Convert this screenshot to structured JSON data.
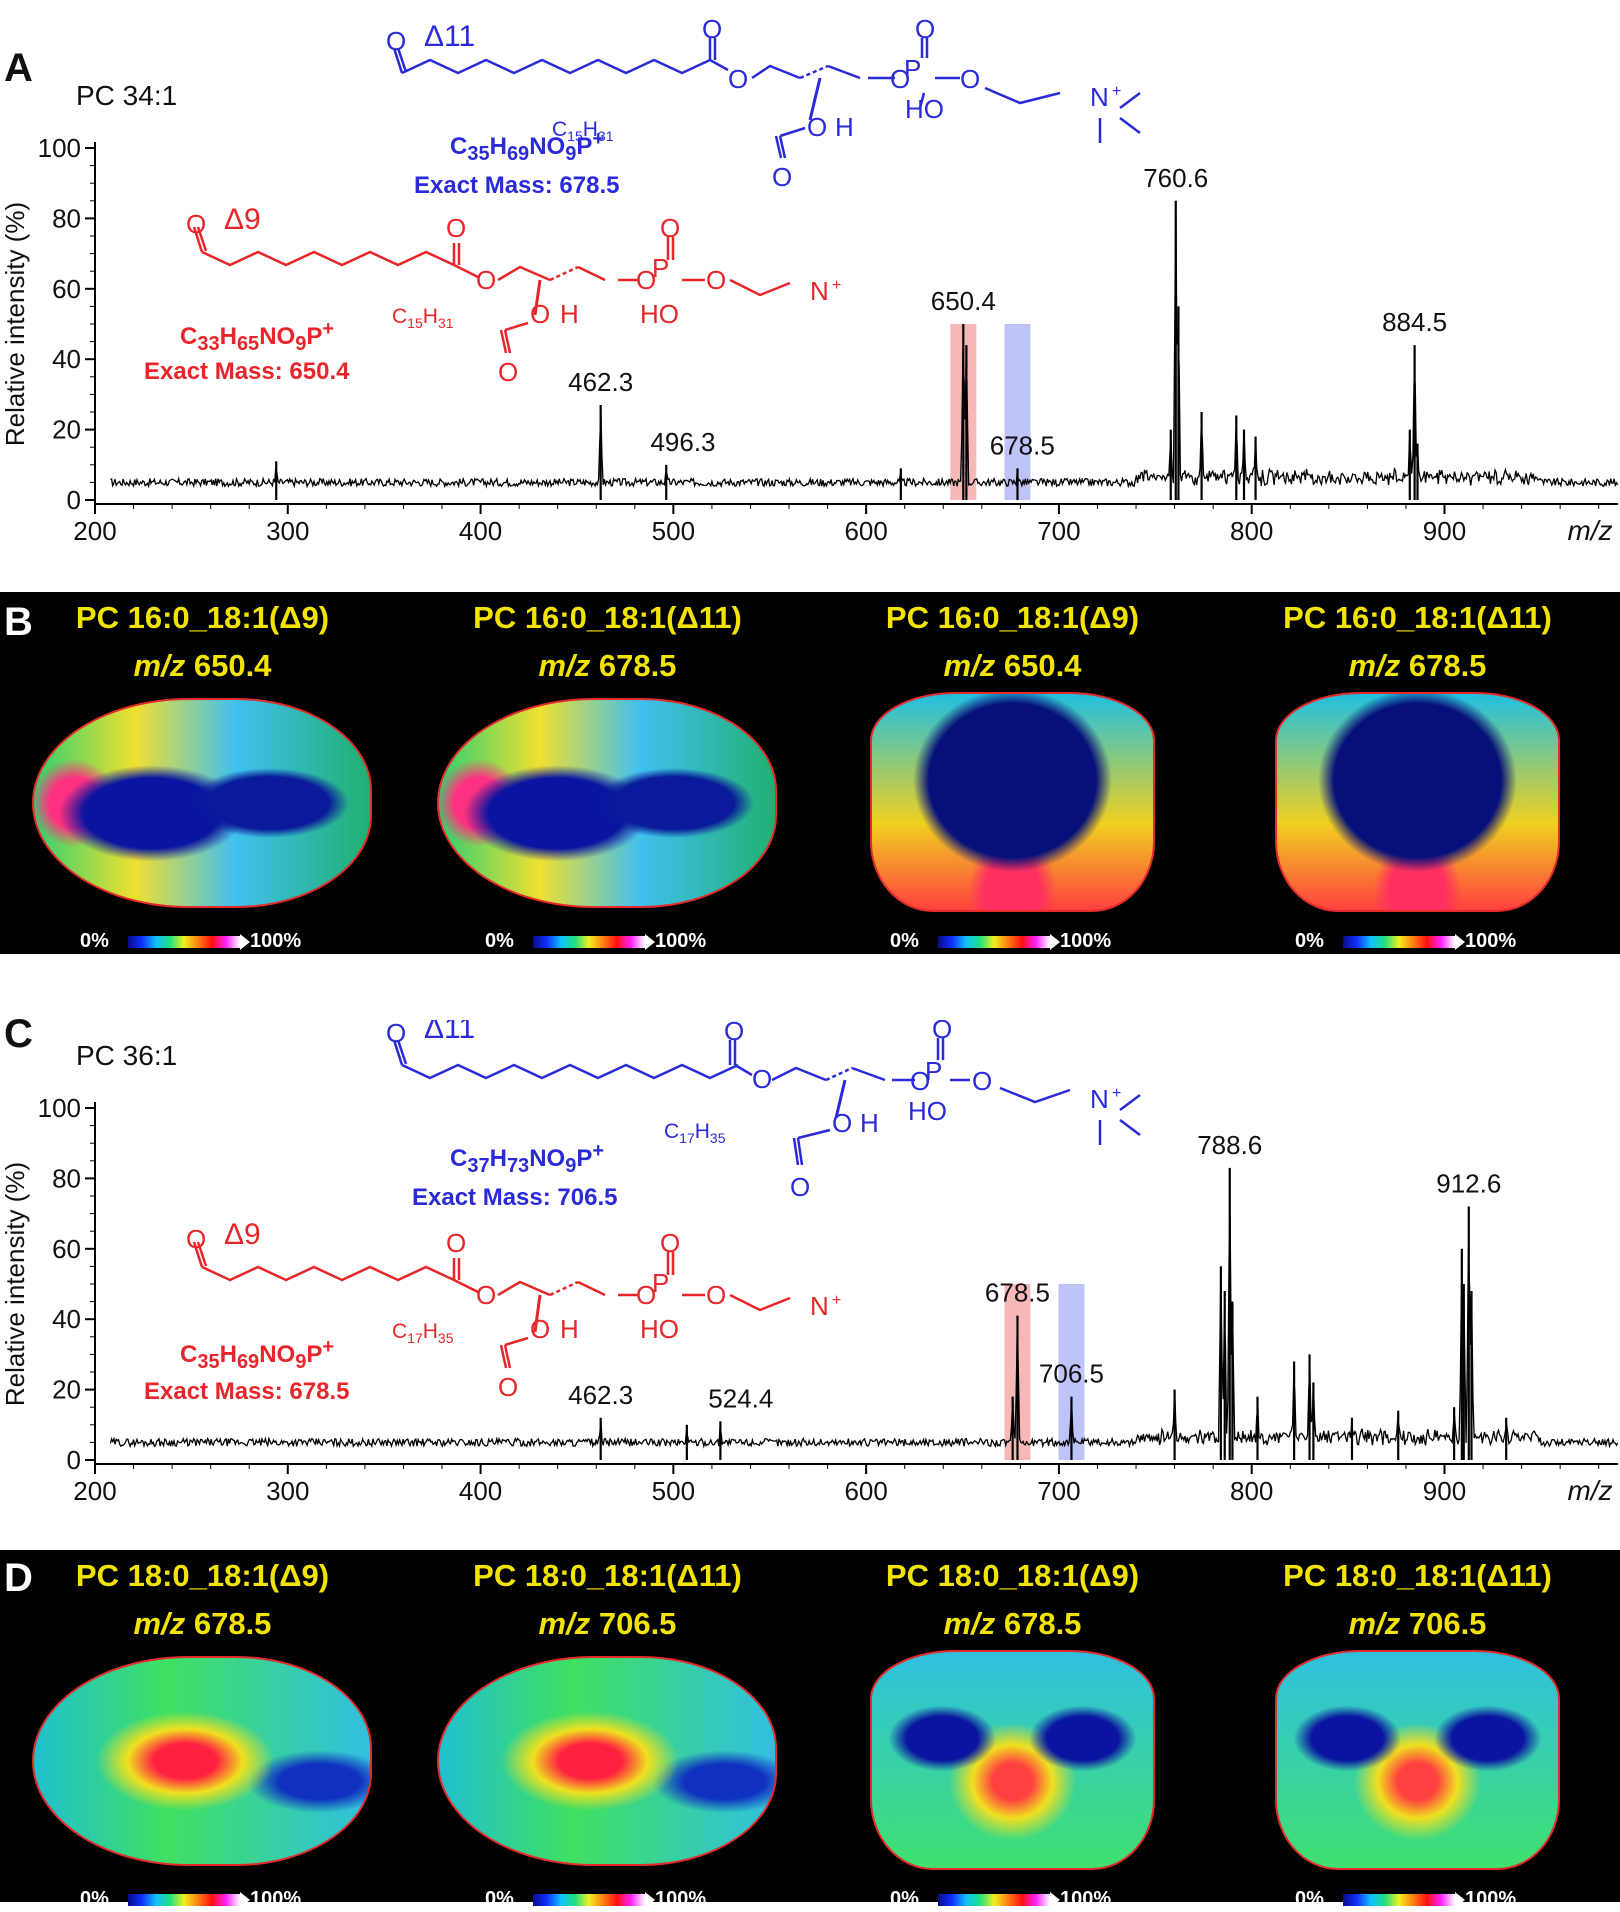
{
  "panels": {
    "A": "A",
    "B": "B",
    "C": "C",
    "D": "D"
  },
  "spectrumA": {
    "title": "PC 34:1",
    "delta_blue": "Δ11",
    "delta_red": "Δ9",
    "formula_blue_html": "C<sub>35</sub>H<sub>69</sub>NO<sub>9</sub>P<sup>+</sup>",
    "mass_blue": "Exact Mass: 678.5",
    "formula_red_html": "C<sub>33</sub>H<sub>65</sub>NO<sub>9</sub>P<sup>+</sup>",
    "mass_red": "Exact Mass: 650.4",
    "acyl": "C15H31"
  },
  "spectrumC": {
    "title": "PC 36:1",
    "delta_blue": "Δ11",
    "delta_red": "Δ9",
    "formula_blue_html": "C<sub>37</sub>H<sub>73</sub>NO<sub>9</sub>P<sup>+</sup>",
    "mass_blue": "Exact Mass: 706.5",
    "formula_red_html": "C<sub>35</sub>H<sub>69</sub>NO<sub>9</sub>P<sup>+</sup>",
    "mass_red": "Exact Mass: 678.5",
    "acyl": "C17H35"
  },
  "chart_data": [
    {
      "type": "line",
      "title": "PC 34:1",
      "xlabel": "m/z",
      "ylabel": "Relative intensity (%)",
      "xlim": [
        200,
        990
      ],
      "ylim": [
        0,
        100
      ],
      "xticks": [
        200,
        300,
        400,
        500,
        600,
        700,
        800,
        900
      ],
      "yticks": [
        0,
        20,
        40,
        60,
        80,
        100
      ],
      "baseline": 5,
      "peaks": [
        {
          "mz": 294,
          "y": 11
        },
        {
          "mz": 462.3,
          "y": 27,
          "label": "462.3"
        },
        {
          "mz": 496.3,
          "y": 10,
          "label": "496.3",
          "label_mz": 505
        },
        {
          "mz": 618,
          "y": 9
        },
        {
          "mz": 650.4,
          "y": 50,
          "label": "650.4"
        },
        {
          "mz": 652,
          "y": 44
        },
        {
          "mz": 678.5,
          "y": 9,
          "label": "678.5",
          "label_mz": 681
        },
        {
          "mz": 760.6,
          "y": 85,
          "label": "760.6"
        },
        {
          "mz": 762,
          "y": 55
        },
        {
          "mz": 758,
          "y": 20
        },
        {
          "mz": 774,
          "y": 25
        },
        {
          "mz": 792,
          "y": 24
        },
        {
          "mz": 796,
          "y": 20
        },
        {
          "mz": 802,
          "y": 18
        },
        {
          "mz": 884.5,
          "y": 44,
          "label": "884.5"
        },
        {
          "mz": 882,
          "y": 20
        },
        {
          "mz": 886,
          "y": 16
        }
      ],
      "highlights": [
        {
          "mz": 650.4,
          "color": "#f4a0a0"
        },
        {
          "mz": 678.5,
          "color": "#a8b0f4"
        }
      ]
    },
    {
      "type": "line",
      "title": "PC 36:1",
      "xlabel": "m/z",
      "ylabel": "Relative intensity (%)",
      "xlim": [
        200,
        990
      ],
      "ylim": [
        0,
        100
      ],
      "xticks": [
        200,
        300,
        400,
        500,
        600,
        700,
        800,
        900
      ],
      "yticks": [
        0,
        20,
        40,
        60,
        80,
        100
      ],
      "baseline": 5,
      "peaks": [
        {
          "mz": 462.3,
          "y": 12,
          "label": "462.3"
        },
        {
          "mz": 507,
          "y": 10
        },
        {
          "mz": 524.4,
          "y": 11,
          "label": "524.4",
          "label_mz": 535
        },
        {
          "mz": 678.5,
          "y": 41,
          "label": "678.5"
        },
        {
          "mz": 676,
          "y": 18
        },
        {
          "mz": 706.5,
          "y": 18,
          "label": "706.5"
        },
        {
          "mz": 760,
          "y": 20
        },
        {
          "mz": 784,
          "y": 55
        },
        {
          "mz": 786,
          "y": 48
        },
        {
          "mz": 788.6,
          "y": 83,
          "label": "788.6"
        },
        {
          "mz": 790,
          "y": 45
        },
        {
          "mz": 803,
          "y": 18
        },
        {
          "mz": 822,
          "y": 28
        },
        {
          "mz": 830,
          "y": 30
        },
        {
          "mz": 832,
          "y": 22
        },
        {
          "mz": 852,
          "y": 12
        },
        {
          "mz": 876,
          "y": 14
        },
        {
          "mz": 905,
          "y": 15
        },
        {
          "mz": 909,
          "y": 60
        },
        {
          "mz": 910,
          "y": 50
        },
        {
          "mz": 912.6,
          "y": 72,
          "label": "912.6"
        },
        {
          "mz": 914,
          "y": 48
        },
        {
          "mz": 932,
          "y": 12
        }
      ],
      "highlights": [
        {
          "mz": 678.5,
          "color": "#f4a0a0"
        },
        {
          "mz": 706.5,
          "color": "#a8b0f4"
        }
      ]
    }
  ],
  "imagingB": [
    {
      "name": "PC 16:0_18:1(Δ9)",
      "mz_label": "m/z",
      "mz": "650.4",
      "view": "sagittal"
    },
    {
      "name": "PC 16:0_18:1(Δ11)",
      "mz_label": "m/z",
      "mz": "678.5",
      "view": "sagittal"
    },
    {
      "name": "PC 16:0_18:1(Δ9)",
      "mz_label": "m/z",
      "mz": "650.4",
      "view": "coronal"
    },
    {
      "name": "PC 16:0_18:1(Δ11)",
      "mz_label": "m/z",
      "mz": "678.5",
      "view": "coronal"
    }
  ],
  "imagingD": [
    {
      "name": "PC 18:0_18:1(Δ9)",
      "mz_label": "m/z",
      "mz": "678.5",
      "view": "sagittal"
    },
    {
      "name": "PC 18:0_18:1(Δ11)",
      "mz_label": "m/z",
      "mz": "706.5",
      "view": "sagittal"
    },
    {
      "name": "PC 18:0_18:1(Δ9)",
      "mz_label": "m/z",
      "mz": "678.5",
      "view": "coronal"
    },
    {
      "name": "PC 18:0_18:1(Δ11)",
      "mz_label": "m/z",
      "mz": "706.5",
      "view": "coronal"
    }
  ],
  "colorbar": {
    "low": "0%",
    "high": "100%"
  }
}
